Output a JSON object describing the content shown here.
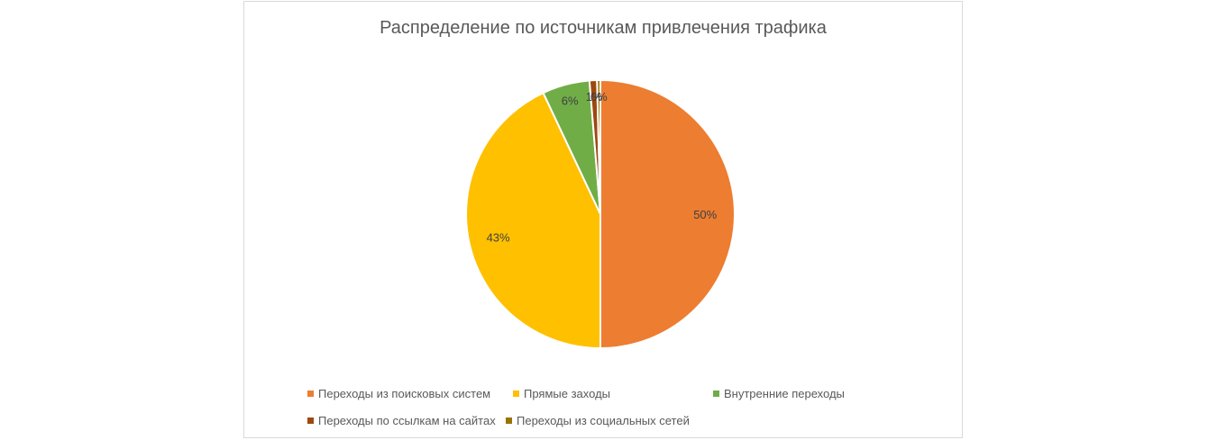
{
  "chart_data": {
    "type": "pie",
    "title": "Распределение по источникам привлечения трафика",
    "slices": [
      {
        "name": "Переходы из поисковых систем",
        "value": 50,
        "label": "50%",
        "color": "#ED7D31"
      },
      {
        "name": "Прямые заходы",
        "value": 43,
        "label": "43%",
        "color": "#FFC000"
      },
      {
        "name": "Внутренние переходы",
        "value": 5.7,
        "label": "6%",
        "color": "#70AD47"
      },
      {
        "name": "Переходы по ссылкам на сайтах",
        "value": 0.9,
        "label": "1%",
        "color": "#9E480E"
      },
      {
        "name": "Переходы из социальных сетей",
        "value": 0.4,
        "label": "0%",
        "color": "#997300"
      }
    ],
    "legend_position": "bottom"
  }
}
